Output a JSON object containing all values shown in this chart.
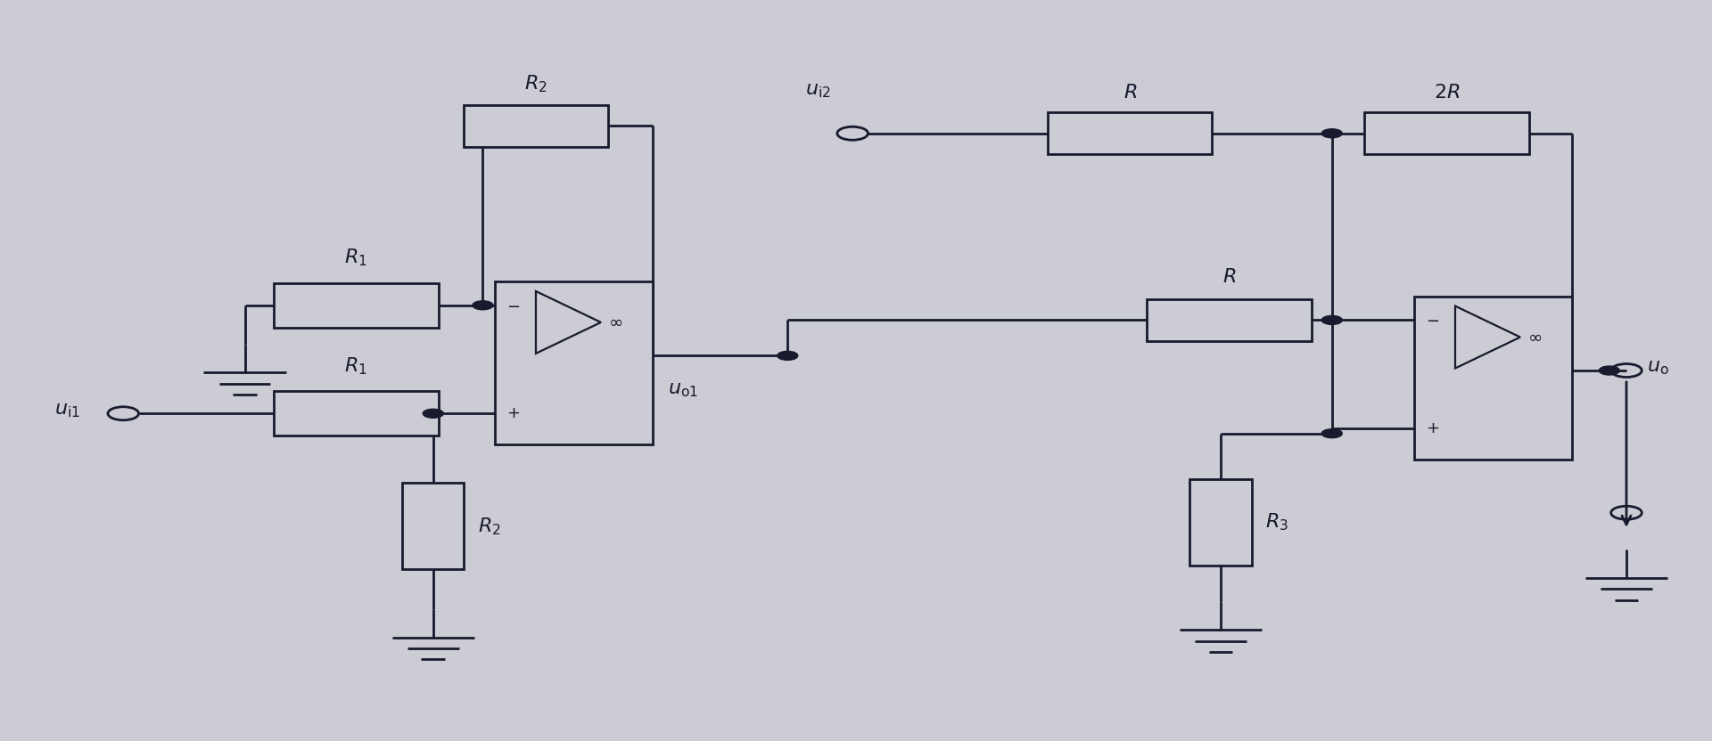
{
  "bg_color": "#ccccd4",
  "line_color": "#1a1a2e",
  "line_width": 2.0,
  "fig_width": 19.2,
  "fig_height": 8.32
}
